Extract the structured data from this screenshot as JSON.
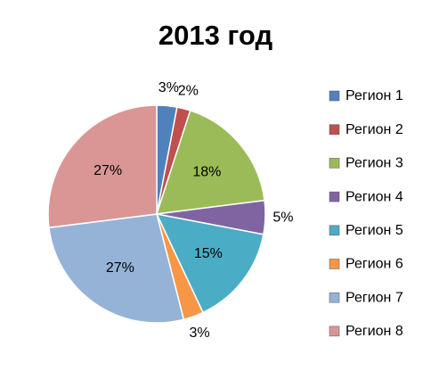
{
  "chart_data": {
    "type": "pie",
    "title": "2013 год",
    "categories": [
      "Регион 1",
      "Регион 2",
      "Регион 3",
      "Регион 4",
      "Регион 5",
      "Регион 6",
      "Регион 7",
      "Регион 8"
    ],
    "values": [
      3,
      2,
      18,
      5,
      15,
      3,
      27,
      27
    ],
    "value_labels": [
      "3%",
      "2%",
      "18%",
      "5%",
      "15%",
      "3%",
      "27%",
      "27%"
    ],
    "colors": [
      "#4f81bd",
      "#c0504d",
      "#9bbb59",
      "#8064a2",
      "#4bacc6",
      "#f79646",
      "#95b3d7",
      "#d99694"
    ],
    "legend": "right"
  }
}
